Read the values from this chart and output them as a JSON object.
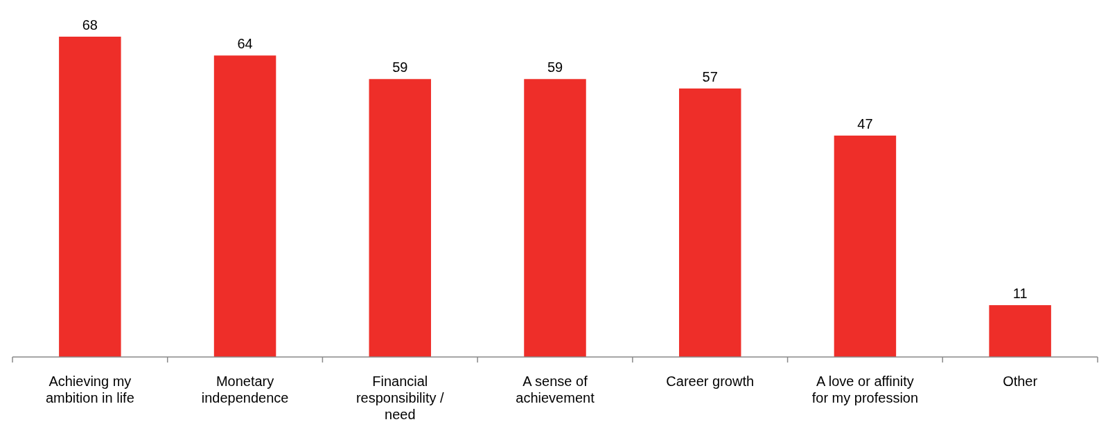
{
  "chart_data": {
    "type": "bar",
    "categories": [
      "Achieving my ambition in life",
      "Monetary independence",
      "Financial responsibility / need",
      "A sense of achievement",
      "Career growth",
      "A love or affinity for my profession",
      "Other"
    ],
    "values": [
      68,
      64,
      59,
      59,
      57,
      47,
      11
    ],
    "color": "#ee2e29",
    "data_labels": true
  }
}
